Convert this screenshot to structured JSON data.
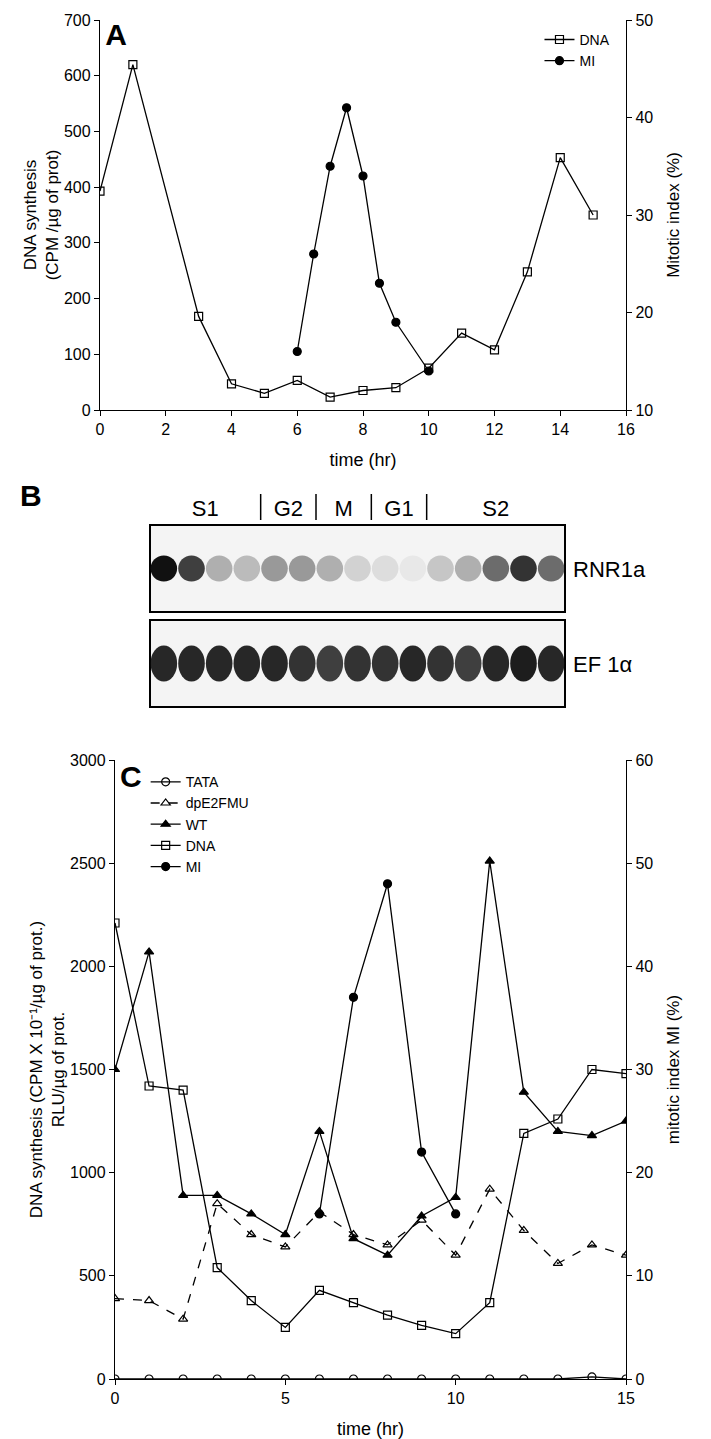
{
  "chart_data": [
    {
      "type": "line",
      "title": "A",
      "xlabel": "time (hr)",
      "ylabel": [
        "DNA synthesis",
        "(CPM /µg of prot)"
      ],
      "y2label": [
        "Mitotic index (%)"
      ],
      "xlim": [
        0,
        16
      ],
      "xticks": [
        0,
        2,
        4,
        6,
        8,
        10,
        12,
        14,
        16
      ],
      "ylim": [
        0,
        700
      ],
      "yticks": [
        0,
        100,
        200,
        300,
        400,
        500,
        600,
        700
      ],
      "y2lim": [
        10,
        50
      ],
      "y2ticks": [
        10,
        20,
        30,
        40,
        50
      ],
      "grid": false,
      "legend": "upper right",
      "series": [
        {
          "name": "DNA",
          "color": "#000000",
          "marker": "square-open",
          "line_style": "solid",
          "x": [
            0,
            1,
            3,
            4,
            5,
            6,
            7,
            8,
            9,
            10,
            11,
            12,
            13,
            14,
            15
          ],
          "values": [
            393,
            620,
            168,
            47,
            30,
            53,
            23,
            35,
            40,
            75,
            138,
            108,
            248,
            453,
            350
          ]
        },
        {
          "name": "MI",
          "color": "#000000",
          "marker": "circle",
          "line_style": "solid",
          "axis": "y2",
          "x": [
            6,
            6.5,
            7,
            7.5,
            8,
            8.5,
            9,
            10
          ],
          "values": [
            16,
            26,
            35,
            41,
            34,
            23,
            19,
            14
          ]
        }
      ]
    },
    {
      "type": "line",
      "title": "C",
      "xlabel": "time (hr)",
      "ylabel": [
        "DNA synthesis (CPM X 10⁻¹/µg of prot.)",
        "RLU/µg of prot."
      ],
      "y2label": [
        "mitotic index MI (%)"
      ],
      "xlim": [
        0,
        15
      ],
      "xticks": [
        0,
        5,
        10,
        15
      ],
      "ylim": [
        0,
        3000
      ],
      "yticks": [
        0,
        500,
        1000,
        1500,
        2000,
        2500,
        3000
      ],
      "y2lim": [
        0,
        60
      ],
      "y2ticks": [
        0,
        10,
        20,
        30,
        40,
        50,
        60
      ],
      "grid": false,
      "legend": "upper left",
      "series": [
        {
          "name": "TATA",
          "color": "#000000",
          "marker": "circle-open",
          "line_style": "solid",
          "x": [
            0,
            1,
            2,
            3,
            4,
            5,
            6,
            7,
            8,
            9,
            10,
            11,
            12,
            13,
            14,
            15
          ],
          "values": [
            0,
            0,
            0,
            0,
            0,
            0,
            0,
            0,
            0,
            0,
            0,
            0,
            0,
            0,
            10,
            0
          ]
        },
        {
          "name": "dpE2FMU",
          "color": "#000000",
          "marker": "triangle-up-open",
          "line_style": "dash",
          "x": [
            0,
            1,
            2,
            3,
            4,
            5,
            6,
            7,
            8,
            9,
            10,
            11,
            12,
            13,
            14,
            15
          ],
          "values": [
            390,
            380,
            290,
            850,
            700,
            640,
            810,
            700,
            650,
            770,
            600,
            920,
            720,
            560,
            650,
            600
          ]
        },
        {
          "name": "WT",
          "color": "#000000",
          "marker": "triangle-up",
          "line_style": "solid",
          "x": [
            0,
            1,
            2,
            3,
            4,
            5,
            6,
            7,
            8,
            9,
            10,
            11,
            12,
            13,
            14,
            15
          ],
          "values": [
            1500,
            2070,
            890,
            890,
            800,
            700,
            1200,
            680,
            600,
            790,
            880,
            2510,
            1390,
            1200,
            1180,
            1250
          ]
        },
        {
          "name": "DNA",
          "color": "#000000",
          "marker": "square-open",
          "line_style": "solid",
          "x": [
            0,
            1,
            2,
            3,
            4,
            5,
            6,
            7,
            8,
            9,
            10,
            11,
            12,
            13,
            14,
            15
          ],
          "values": [
            2210,
            1420,
            1400,
            540,
            380,
            250,
            430,
            370,
            310,
            260,
            220,
            370,
            1190,
            1260,
            1500,
            1480
          ]
        },
        {
          "name": "MI",
          "color": "#000000",
          "marker": "circle",
          "line_style": "solid",
          "axis": "y2",
          "x": [
            6,
            7,
            8,
            9,
            10
          ],
          "values": [
            16,
            37,
            48,
            22,
            16
          ]
        }
      ]
    }
  ],
  "blot": {
    "title": "B",
    "phases": [
      {
        "label": "S1",
        "start": 0,
        "end": 3
      },
      {
        "label": "G2",
        "start": 4,
        "end": 5
      },
      {
        "label": "M",
        "start": 6,
        "end": 7
      },
      {
        "label": "G1",
        "start": 8,
        "end": 9
      },
      {
        "label": "S2",
        "start": 10,
        "end": 14
      }
    ],
    "rows": [
      {
        "name": "RNR1a",
        "intensity": [
          1.0,
          0.8,
          0.3,
          0.25,
          0.4,
          0.4,
          0.3,
          0.15,
          0.1,
          0.05,
          0.2,
          0.3,
          0.6,
          0.85,
          0.6
        ]
      },
      {
        "name": "EF 1α",
        "intensity": [
          0.9,
          0.9,
          0.9,
          0.9,
          0.9,
          0.85,
          0.8,
          0.85,
          0.85,
          0.9,
          0.85,
          0.8,
          0.9,
          0.95,
          0.9
        ]
      }
    ]
  }
}
